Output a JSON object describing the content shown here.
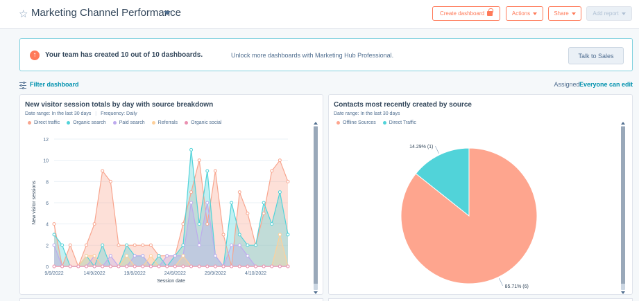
{
  "header": {
    "title": "Marketing Channel Performance",
    "buttons": {
      "create_dashboard": "Create dashboard",
      "actions": "Actions",
      "share": "Share",
      "add_report": "Add report"
    }
  },
  "banner": {
    "strong": "Your team has created 10 out of 10 dashboards.",
    "text": "Unlock more dashboards with Marketing Hub Professional.",
    "button": "Talk to Sales"
  },
  "filter": {
    "link": "Filter dashboard",
    "assigned_label": "Assigned:",
    "assigned_value": "Everyone can edit"
  },
  "card1": {
    "title": "New visitor session totals by day with source breakdown",
    "meta": "Date range: In the last 30 days",
    "frequency": "Frequency: Daily"
  },
  "card2": {
    "title": "Contacts most recently created by source",
    "meta": "Date range: In the last 30 days"
  },
  "colors": {
    "direct": "#f8a58e",
    "organic": "#51d3d9",
    "paid": "#beaaee",
    "referrals": "#fed09a",
    "social": "#ea90b1",
    "offline": "#fea58e",
    "accent": "#ff7a59",
    "link": "#0091ae"
  },
  "chart_data": [
    {
      "type": "area",
      "title": "New visitor session totals by day with source breakdown",
      "xlabel": "Session date",
      "ylabel": "New visitor sessions",
      "ylim": [
        0,
        12
      ],
      "yticks": [
        "0",
        "2",
        "4",
        "6",
        "8",
        "10",
        "12"
      ],
      "x_tick_labels": [
        "9/9/2022",
        "14/9/2022",
        "19/9/2022",
        "24/9/2022",
        "29/9/2022",
        "4/10/2022"
      ],
      "x": [
        "9/9",
        "10/9",
        "11/9",
        "12/9",
        "13/9",
        "14/9",
        "15/9",
        "16/9",
        "17/9",
        "18/9",
        "19/9",
        "20/9",
        "21/9",
        "22/9",
        "23/9",
        "24/9",
        "25/9",
        "26/9",
        "27/9",
        "28/9",
        "29/9",
        "30/9",
        "1/10",
        "2/10",
        "3/10",
        "4/10",
        "5/10",
        "6/10",
        "7/10",
        "8/10"
      ],
      "series": [
        {
          "name": "Direct traffic",
          "values": [
            4,
            0,
            2,
            0,
            2,
            4,
            9,
            8,
            2,
            2,
            2,
            2,
            2,
            1,
            1,
            1,
            4,
            7,
            10,
            4,
            9,
            3,
            0,
            7,
            5,
            2,
            5,
            9,
            10,
            8
          ]
        },
        {
          "name": "Organic search",
          "values": [
            3,
            2,
            0,
            0,
            1,
            0,
            2,
            0,
            0,
            2,
            1,
            1,
            0,
            1,
            0,
            1,
            2,
            11,
            4,
            9,
            1,
            0,
            6,
            3,
            2,
            2,
            6,
            4,
            7,
            3
          ]
        },
        {
          "name": "Paid search",
          "values": [
            2,
            0,
            0,
            0,
            0,
            1,
            0,
            1,
            0,
            0,
            1,
            1,
            0,
            0,
            1,
            1,
            1,
            6,
            2,
            6,
            1,
            0,
            2,
            2,
            1,
            0,
            0,
            0,
            0,
            0
          ]
        },
        {
          "name": "Referrals",
          "values": [
            0,
            0,
            0,
            0,
            1,
            1,
            0,
            0,
            0,
            1,
            0,
            0,
            1,
            0,
            0,
            0,
            1,
            0,
            0,
            0,
            0,
            0,
            0,
            0,
            0,
            0,
            0,
            0,
            3,
            0
          ]
        },
        {
          "name": "Organic social",
          "values": [
            0,
            0,
            0,
            0,
            0,
            0,
            0,
            0,
            0,
            0,
            0,
            0,
            0,
            0,
            0,
            0,
            0,
            0,
            0,
            0,
            0,
            0,
            0,
            0,
            0,
            0,
            0,
            0,
            0,
            0
          ]
        }
      ],
      "legend": "top-left",
      "grid": true
    },
    {
      "type": "pie",
      "title": "Contacts most recently created by source",
      "categories": [
        "Offline Sources",
        "Direct Traffic"
      ],
      "values": [
        6,
        1
      ],
      "labels": [
        "85.71% (6)",
        "14.29% (1)"
      ],
      "legend": "top-left"
    }
  ]
}
